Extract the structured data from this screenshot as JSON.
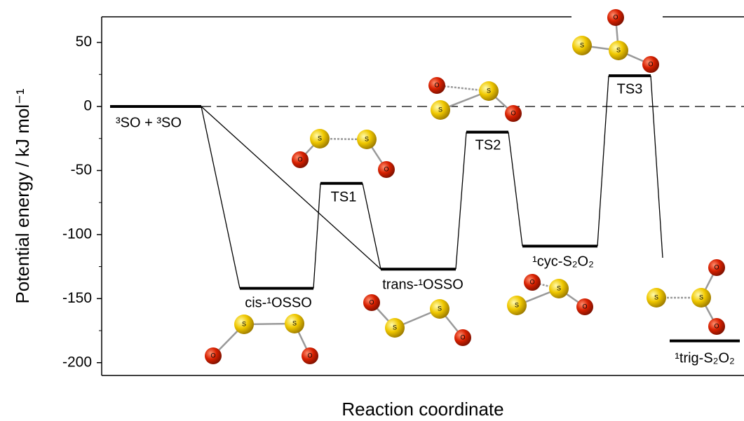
{
  "chart_data": {
    "type": "level",
    "xlabel": "Reaction coordinate",
    "ylabel": "Potential energy / kJ mol⁻¹",
    "categories": [
      "³SO + ³SO",
      "cis-¹OSSO",
      "TS1",
      "trans-¹OSSO",
      "TS2",
      "¹cyc-S₂O₂",
      "TS3",
      "¹trig-S₂O₂"
    ],
    "values": [
      0,
      -142,
      -60,
      -127,
      -20,
      -109,
      24,
      -183
    ],
    "color": "#000000",
    "ylim": [
      -210,
      70
    ],
    "yticks": [
      -200,
      -150,
      -100,
      -50,
      0,
      50
    ],
    "minor_yticks": [
      -175,
      -125,
      -75,
      -25,
      25
    ],
    "atom_symbols": [
      "S",
      "O"
    ]
  }
}
